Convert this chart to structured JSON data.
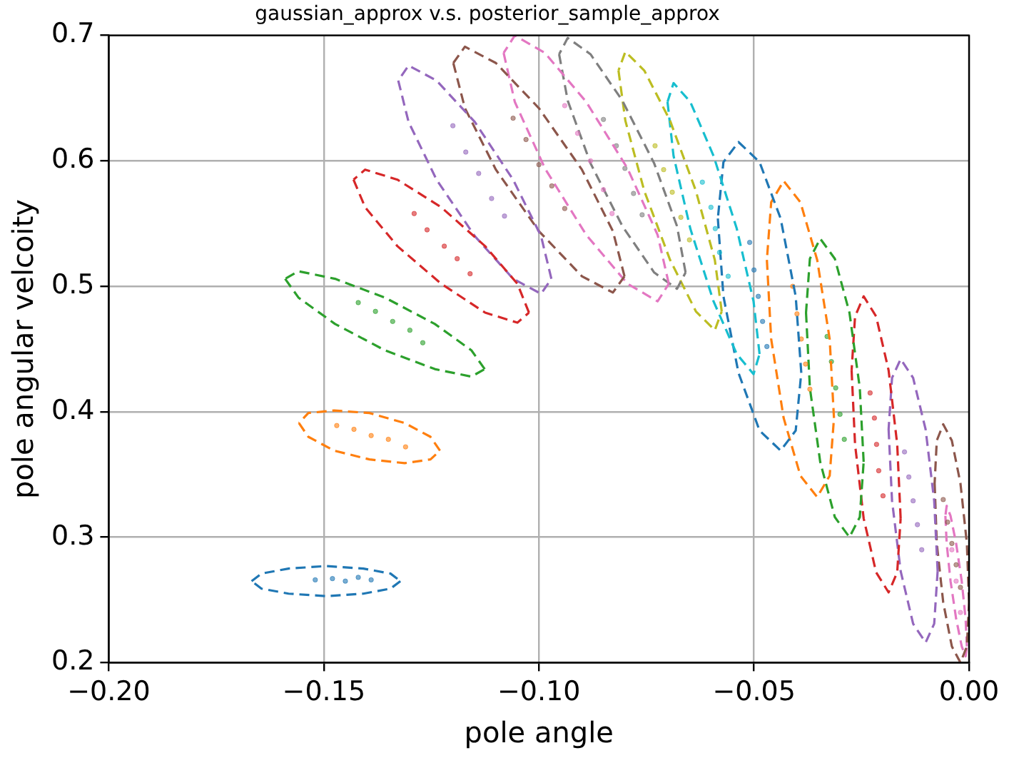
{
  "chart_data": {
    "type": "scatter",
    "title": "gaussian_approx v.s. posterior_sample_approx",
    "xlabel": "pole angle",
    "ylabel": "pole angular velcoity",
    "xlim": [
      -0.2,
      0
    ],
    "ylim": [
      0.2,
      0.7
    ],
    "xticks": [
      {
        "value": -0.2,
        "label": "−0.20"
      },
      {
        "value": -0.15,
        "label": "−0.15"
      },
      {
        "value": -0.1,
        "label": "−0.10"
      },
      {
        "value": -0.05,
        "label": "−0.05"
      },
      {
        "value": 0,
        "label": "0.00"
      }
    ],
    "yticks": [
      0.2,
      0.3,
      0.4,
      0.5,
      0.6,
      0.7
    ],
    "grid": true,
    "legend": false,
    "series": [
      {
        "type": "line",
        "line_style": "dashed",
        "marker": "none",
        "color": "#1f77b4",
        "x": [
          -0.1322,
          -0.1345,
          -0.1408,
          -0.1495,
          -0.1582,
          -0.1645,
          -0.1668,
          null,
          -0.1668,
          -0.1645,
          -0.1582,
          -0.1495,
          -0.1408,
          -0.1345,
          -0.1322
        ],
        "values": [
          0.265,
          0.259,
          0.255,
          0.253,
          0.255,
          0.259,
          0.265,
          null,
          0.265,
          0.271,
          0.275,
          0.277,
          0.275,
          0.271,
          0.265
        ]
      },
      {
        "type": "scatter",
        "marker": "circle",
        "color": "#1f77b4",
        "x": [
          -0.152,
          -0.148,
          -0.145,
          -0.142,
          -0.139
        ],
        "values": [
          0.266,
          0.267,
          0.265,
          0.268,
          0.266
        ]
      },
      {
        "type": "line",
        "line_style": "dashed",
        "marker": "none",
        "color": "#ff7f0e",
        "x": [
          -0.123,
          -0.1252,
          -0.1312,
          -0.1394,
          -0.1476,
          -0.1536,
          -0.1558,
          null,
          -0.1558,
          -0.1536,
          -0.1476,
          -0.1394,
          -0.1312,
          -0.1252,
          -0.123
        ],
        "values": [
          0.369,
          0.38,
          0.391,
          0.399,
          0.401,
          0.399,
          0.391,
          null,
          0.391,
          0.38,
          0.369,
          0.362,
          0.359,
          0.362,
          0.369
        ]
      },
      {
        "type": "scatter",
        "marker": "circle",
        "color": "#ff7f0e",
        "x": [
          -0.147,
          -0.143,
          -0.139,
          -0.135,
          -0.131
        ],
        "values": [
          0.389,
          0.386,
          0.381,
          0.378,
          0.372
        ]
      },
      {
        "type": "line",
        "line_style": "dashed",
        "marker": "none",
        "color": "#2ca02c",
        "x": [
          -0.1126,
          -0.1157,
          -0.1242,
          -0.1358,
          -0.1474,
          -0.1559,
          -0.159,
          null,
          -0.159,
          -0.1559,
          -0.1474,
          -0.1358,
          -0.1242,
          -0.1157,
          -0.1126
        ],
        "values": [
          0.434,
          0.449,
          0.47,
          0.491,
          0.506,
          0.512,
          0.506,
          null,
          0.506,
          0.491,
          0.47,
          0.449,
          0.434,
          0.428,
          0.434
        ]
      },
      {
        "type": "scatter",
        "marker": "circle",
        "color": "#2ca02c",
        "x": [
          -0.142,
          -0.138,
          -0.134,
          -0.13,
          -0.127
        ],
        "values": [
          0.487,
          0.48,
          0.472,
          0.465,
          0.455
        ]
      },
      {
        "type": "line",
        "line_style": "dashed",
        "marker": "none",
        "color": "#d62728",
        "x": [
          -0.1023,
          -0.105,
          -0.1125,
          -0.1227,
          -0.1329,
          -0.1404,
          -0.1431,
          null,
          -0.1431,
          -0.1404,
          -0.1329,
          -0.1227,
          -0.1125,
          -0.105,
          -0.1023
        ],
        "values": [
          0.479,
          0.502,
          0.532,
          0.563,
          0.585,
          0.593,
          0.585,
          null,
          0.585,
          0.563,
          0.532,
          0.502,
          0.479,
          0.471,
          0.479
        ]
      },
      {
        "type": "scatter",
        "marker": "circle",
        "color": "#d62728",
        "x": [
          -0.129,
          -0.126,
          -0.122,
          -0.119,
          -0.116
        ],
        "values": [
          0.558,
          0.545,
          0.532,
          0.522,
          0.51
        ]
      },
      {
        "type": "line",
        "line_style": "dashed",
        "marker": "none",
        "color": "#9467bd",
        "x": [
          -0.0971,
          -0.0995,
          -0.106,
          -0.1149,
          -0.1238,
          -0.1303,
          -0.1327,
          null,
          -0.1327,
          -0.1303,
          -0.1238,
          -0.1149,
          -0.106,
          -0.0995,
          -0.0971
        ],
        "values": [
          0.506,
          0.54,
          0.585,
          0.631,
          0.664,
          0.676,
          0.664,
          null,
          0.664,
          0.631,
          0.585,
          0.54,
          0.506,
          0.494,
          0.506
        ]
      },
      {
        "type": "scatter",
        "marker": "circle",
        "color": "#9467bd",
        "x": [
          -0.12,
          -0.117,
          -0.114,
          -0.111,
          -0.108
        ],
        "values": [
          0.628,
          0.607,
          0.59,
          0.57,
          0.556
        ]
      },
      {
        "type": "line",
        "line_style": "dashed",
        "marker": "none",
        "color": "#8c564b",
        "x": [
          -0.0801,
          -0.0828,
          -0.09,
          -0.1,
          -0.11,
          -0.1172,
          -0.1199,
          null,
          -0.1199,
          -0.1172,
          -0.11,
          -0.1,
          -0.09,
          -0.0828,
          -0.0801
        ],
        "values": [
          0.508,
          0.544,
          0.593,
          0.642,
          0.678,
          0.691,
          0.678,
          null,
          0.678,
          0.642,
          0.593,
          0.544,
          0.508,
          0.495,
          0.508
        ]
      },
      {
        "type": "scatter",
        "marker": "circle",
        "color": "#8c564b",
        "x": [
          -0.106,
          -0.103,
          -0.1,
          -0.097,
          -0.094
        ],
        "values": [
          0.634,
          0.617,
          0.597,
          0.58,
          0.562
        ]
      },
      {
        "type": "line",
        "line_style": "dashed",
        "marker": "none",
        "color": "#e377c2",
        "x": [
          -0.0698,
          -0.0724,
          -0.0794,
          -0.089,
          -0.0986,
          -0.1056,
          -0.1082,
          null,
          -0.1082,
          -0.1056,
          -0.0986,
          -0.089,
          -0.0794,
          -0.0724,
          -0.0698
        ],
        "values": [
          0.502,
          0.541,
          0.594,
          0.647,
          0.686,
          0.7,
          0.686,
          null,
          0.686,
          0.647,
          0.594,
          0.541,
          0.502,
          0.488,
          0.502
        ]
      },
      {
        "type": "scatter",
        "marker": "circle",
        "color": "#e377c2",
        "x": [
          -0.094,
          -0.091,
          -0.088,
          -0.085,
          -0.083
        ],
        "values": [
          0.644,
          0.622,
          0.6,
          0.577,
          0.558
        ]
      },
      {
        "type": "line",
        "line_style": "dashed",
        "marker": "none",
        "color": "#7f7f7f",
        "x": [
          -0.0659,
          -0.0679,
          -0.0732,
          -0.0806,
          -0.088,
          -0.0933,
          -0.0953,
          null,
          -0.0953,
          -0.0933,
          -0.088,
          -0.0806,
          -0.0732,
          -0.0679,
          -0.0659
        ],
        "values": [
          0.511,
          0.548,
          0.598,
          0.648,
          0.685,
          0.698,
          0.685,
          null,
          0.685,
          0.648,
          0.598,
          0.548,
          0.511,
          0.498,
          0.511
        ]
      },
      {
        "type": "scatter",
        "marker": "circle",
        "color": "#7f7f7f",
        "x": [
          -0.085,
          -0.082,
          -0.08,
          -0.078,
          -0.076
        ],
        "values": [
          0.633,
          0.612,
          0.594,
          0.574,
          0.557
        ]
      },
      {
        "type": "line",
        "line_style": "dashed",
        "marker": "none",
        "color": "#bcbd22",
        "x": [
          -0.0575,
          -0.0591,
          -0.0635,
          -0.0695,
          -0.0755,
          -0.0799,
          -0.0815,
          null,
          -0.0815,
          -0.0799,
          -0.0755,
          -0.0695,
          -0.0635,
          -0.0591,
          -0.0575
        ],
        "values": [
          0.48,
          0.521,
          0.576,
          0.632,
          0.672,
          0.687,
          0.672,
          null,
          0.672,
          0.632,
          0.576,
          0.521,
          0.48,
          0.465,
          0.48
        ]
      },
      {
        "type": "scatter",
        "marker": "circle",
        "color": "#bcbd22",
        "x": [
          -0.073,
          -0.071,
          -0.069,
          -0.067,
          -0.065
        ],
        "values": [
          0.612,
          0.593,
          0.575,
          0.555,
          0.537
        ]
      },
      {
        "type": "line",
        "line_style": "dashed",
        "marker": "none",
        "color": "#17becf",
        "x": [
          -0.0487,
          -0.0501,
          -0.054,
          -0.0594,
          -0.0648,
          -0.0687,
          -0.0701,
          null,
          -0.0701,
          -0.0687,
          -0.0648,
          -0.0594,
          -0.054,
          -0.0501,
          -0.0487
        ],
        "values": [
          0.446,
          0.488,
          0.546,
          0.604,
          0.647,
          0.662,
          0.647,
          null,
          0.647,
          0.604,
          0.546,
          0.488,
          0.446,
          0.43,
          0.446
        ]
      },
      {
        "type": "scatter",
        "marker": "circle",
        "color": "#17becf",
        "x": [
          -0.062,
          -0.06,
          -0.059,
          -0.058,
          -0.056
        ],
        "values": [
          0.583,
          0.563,
          0.546,
          0.527,
          0.508
        ]
      },
      {
        "type": "line",
        "line_style": "dashed",
        "marker": "none",
        "color": "#1f77b4",
        "x": [
          -0.039,
          -0.0403,
          -0.0438,
          -0.0487,
          -0.0536,
          -0.0571,
          -0.0584,
          null,
          -0.0584,
          -0.0571,
          -0.0536,
          -0.0487,
          -0.0438,
          -0.0403,
          -0.039
        ],
        "values": [
          0.431,
          0.492,
          0.554,
          0.599,
          0.615,
          0.599,
          0.554,
          null,
          0.554,
          0.492,
          0.431,
          0.385,
          0.369,
          0.385,
          0.431
        ]
      },
      {
        "type": "scatter",
        "marker": "circle",
        "color": "#1f77b4",
        "x": [
          -0.051,
          -0.05,
          -0.049,
          -0.048,
          -0.047
        ],
        "values": [
          0.535,
          0.513,
          0.492,
          0.472,
          0.452
        ]
      },
      {
        "type": "line",
        "line_style": "dashed",
        "marker": "none",
        "color": "#ff7f0e",
        "x": [
          -0.0314,
          -0.0324,
          -0.0353,
          -0.0392,
          -0.0431,
          -0.046,
          -0.047,
          null,
          -0.047,
          -0.046,
          -0.0431,
          -0.0392,
          -0.0353,
          -0.0324,
          -0.0314
        ],
        "values": [
          0.395,
          0.458,
          0.521,
          0.567,
          0.584,
          0.567,
          0.521,
          null,
          0.521,
          0.458,
          0.395,
          0.349,
          0.332,
          0.349,
          0.395
        ]
      },
      {
        "type": "scatter",
        "marker": "circle",
        "color": "#ff7f0e",
        "x": [
          -0.041,
          -0.04,
          -0.039,
          -0.038,
          -0.037
        ],
        "values": [
          0.5,
          0.478,
          0.458,
          0.438,
          0.418
        ]
      },
      {
        "type": "line",
        "line_style": "dashed",
        "marker": "none",
        "color": "#2ca02c",
        "x": [
          -0.0245,
          -0.0254,
          -0.0278,
          -0.0312,
          -0.0346,
          -0.037,
          -0.0379,
          null,
          -0.0379,
          -0.037,
          -0.0346,
          -0.0312,
          -0.0278,
          -0.0254,
          -0.0245
        ],
        "values": [
          0.36,
          0.419,
          0.479,
          0.522,
          0.538,
          0.522,
          0.479,
          null,
          0.479,
          0.419,
          0.36,
          0.316,
          0.3,
          0.316,
          0.36
        ]
      },
      {
        "type": "scatter",
        "marker": "circle",
        "color": "#2ca02c",
        "x": [
          -0.033,
          -0.032,
          -0.031,
          -0.03,
          -0.029
        ],
        "values": [
          0.46,
          0.44,
          0.419,
          0.398,
          0.378
        ]
      },
      {
        "type": "line",
        "line_style": "dashed",
        "marker": "none",
        "color": "#d62728",
        "x": [
          -0.0159,
          -0.0167,
          -0.0187,
          -0.0216,
          -0.0245,
          -0.0265,
          -0.0273,
          null,
          -0.0273,
          -0.0265,
          -0.0245,
          -0.0216,
          -0.0187,
          -0.0167,
          -0.0159
        ],
        "values": [
          0.315,
          0.374,
          0.433,
          0.476,
          0.492,
          0.476,
          0.433,
          null,
          0.433,
          0.374,
          0.315,
          0.272,
          0.256,
          0.272,
          0.315
        ]
      },
      {
        "type": "scatter",
        "marker": "circle",
        "color": "#d62728",
        "x": [
          -0.023,
          -0.022,
          -0.0215,
          -0.021,
          -0.02
        ],
        "values": [
          0.415,
          0.395,
          0.374,
          0.353,
          0.333
        ]
      },
      {
        "type": "line",
        "line_style": "dashed",
        "marker": "none",
        "color": "#9467bd",
        "x": [
          -0.0073,
          -0.0081,
          -0.0101,
          -0.013,
          -0.0159,
          -0.0179,
          -0.0187,
          null,
          -0.0187,
          -0.0179,
          -0.0159,
          -0.013,
          -0.0101,
          -0.0081,
          -0.0073
        ],
        "values": [
          0.273,
          0.329,
          0.386,
          0.427,
          0.442,
          0.427,
          0.386,
          null,
          0.386,
          0.329,
          0.273,
          0.231,
          0.216,
          0.231,
          0.273
        ]
      },
      {
        "type": "scatter",
        "marker": "circle",
        "color": "#9467bd",
        "x": [
          -0.015,
          -0.014,
          -0.013,
          -0.012,
          -0.011
        ],
        "values": [
          0.368,
          0.348,
          0.329,
          0.31,
          0.29
        ]
      },
      {
        "type": "line",
        "line_style": "dashed",
        "marker": "none",
        "color": "#8c564b",
        "x": [
          0,
          -0.0005,
          -0.002,
          -0.004,
          -0.006,
          -0.0075,
          -0.008,
          null,
          -0.008,
          -0.0075,
          -0.006,
          -0.004,
          -0.002,
          -0.0005,
          0
        ],
        "values": [
          0.248,
          0.295,
          0.343,
          0.377,
          0.39,
          0.377,
          0.343,
          null,
          0.343,
          0.295,
          0.248,
          0.213,
          0.2,
          0.213,
          0.248
        ]
      },
      {
        "type": "scatter",
        "marker": "circle",
        "color": "#8c564b",
        "x": [
          -0.006,
          -0.005,
          -0.004,
          -0.003,
          -0.002
        ],
        "values": [
          0.33,
          0.312,
          0.295,
          0.278,
          0.26
        ]
      },
      {
        "type": "line",
        "line_style": "dashed",
        "marker": "none",
        "color": "#e377c2",
        "x": [
          -0.0005,
          -0.0008,
          -0.0017,
          -0.003,
          -0.0043,
          -0.0052,
          -0.0055,
          null,
          -0.0055,
          -0.0052,
          -0.0043,
          -0.003,
          -0.0017,
          -0.0008,
          -0.0005
        ],
        "values": [
          0.213,
          0.235,
          0.265,
          0.295,
          0.317,
          0.325,
          0.317,
          null,
          0.317,
          0.295,
          0.265,
          0.235,
          0.213,
          0.205,
          0.213
        ]
      },
      {
        "type": "scatter",
        "marker": "circle",
        "color": "#e377c2",
        "x": [
          -0.004,
          -0.003,
          -0.002
        ],
        "values": [
          0.29,
          0.265,
          0.24
        ]
      }
    ]
  }
}
